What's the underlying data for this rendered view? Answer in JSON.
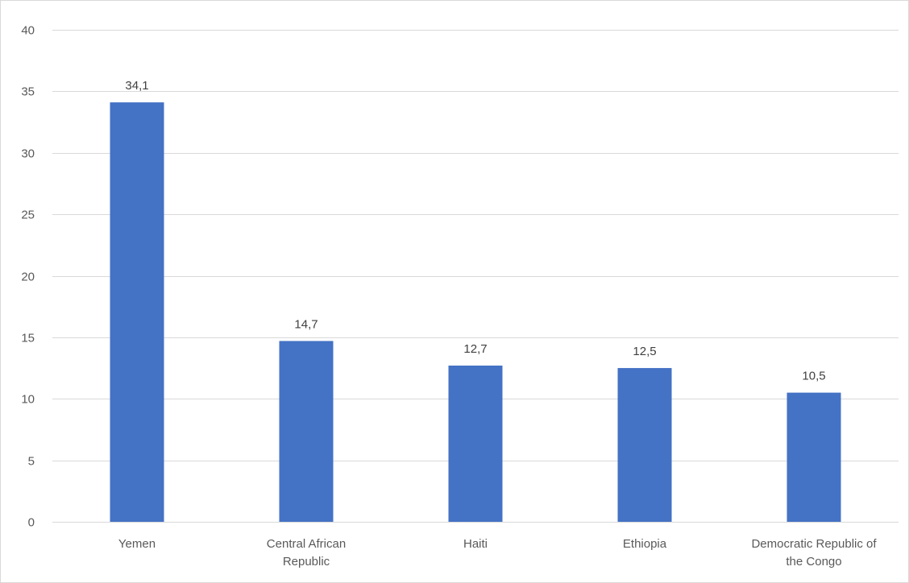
{
  "chart_data": {
    "type": "bar",
    "categories": [
      "Yemen",
      "Central African Republic",
      "Haiti",
      "Ethiopia",
      "Democratic Republic of the Congo"
    ],
    "category_lines": [
      [
        "Yemen"
      ],
      [
        "Central African",
        "Republic"
      ],
      [
        "Haiti"
      ],
      [
        "Ethiopia"
      ],
      [
        "Democratic Republic of",
        "the Congo"
      ]
    ],
    "values": [
      34.1,
      14.7,
      12.7,
      12.5,
      10.5
    ],
    "data_labels": [
      "34,1",
      "14,7",
      "12,7",
      "12,5",
      "10,5"
    ],
    "yticks": [
      0,
      5,
      10,
      15,
      20,
      25,
      30,
      35,
      40
    ],
    "ylim": [
      0,
      40
    ],
    "title": "",
    "xlabel": "",
    "ylabel": "",
    "grid": true,
    "legend": "none",
    "bar_color": "#4472c4"
  }
}
